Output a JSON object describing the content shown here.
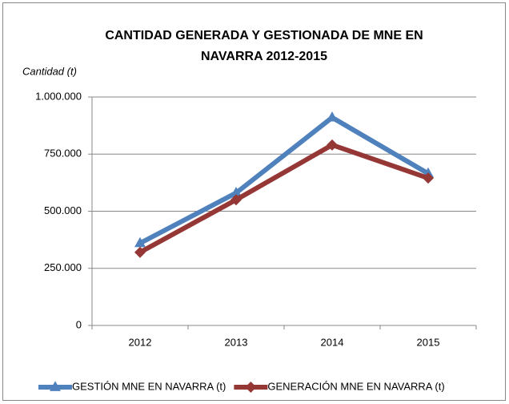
{
  "chart_data": {
    "type": "line",
    "title": "CANTIDAD GENERADA Y GESTIONADA DE MNE EN NAVARRA 2012-2015",
    "y_label": "Cantidad (t)",
    "categories": [
      "2012",
      "2013",
      "2014",
      "2015"
    ],
    "series": [
      {
        "name": "GESTIÓN MNE EN NAVARRA (t)",
        "color": "#4f81bd",
        "marker": "triangle",
        "values": [
          360000,
          580000,
          910000,
          665000
        ]
      },
      {
        "name": "GENERACIÓN MNE EN NAVARRA (t)",
        "color": "#953735",
        "marker": "diamond",
        "values": [
          320000,
          550000,
          790000,
          645000
        ]
      }
    ],
    "ylim": [
      0,
      1000000
    ],
    "yticks": [
      0,
      {
        "value": 250000,
        "label": "250.000"
      },
      {
        "value": 500000,
        "label": "500.000"
      },
      {
        "value": 750000,
        "label": "750.000"
      },
      {
        "value": 1000000,
        "label": "1.000.000"
      }
    ],
    "grid": true,
    "legend": "bottom"
  }
}
